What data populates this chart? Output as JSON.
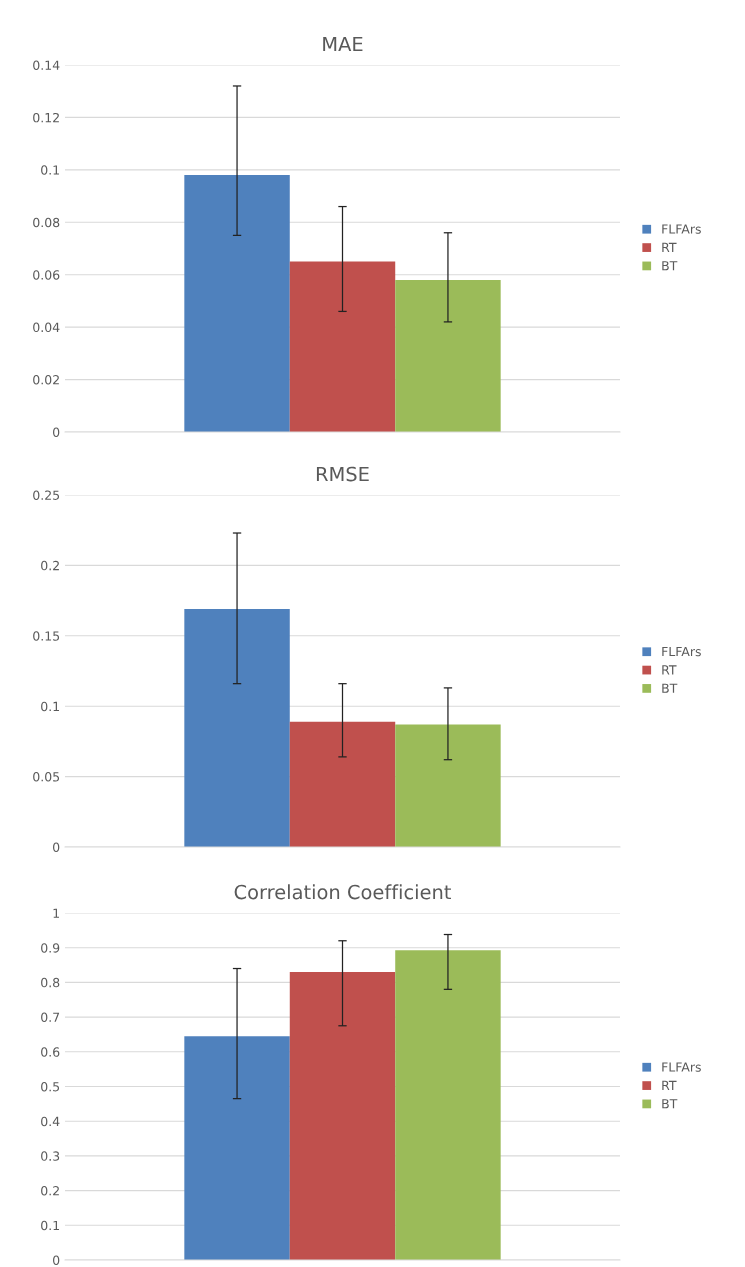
{
  "chart_data": [
    {
      "type": "bar",
      "title": "MAE",
      "categories": [
        null
      ],
      "ylim": [
        0,
        0.14
      ],
      "yticks": [
        {
          "value": 0,
          "label": "0"
        },
        0.02,
        0.04,
        0.06,
        0.08,
        {
          "value": 0.1,
          "label": "0.1"
        },
        0.12,
        0.14
      ],
      "grid": "y",
      "legend": "right",
      "series": [
        {
          "name": "FLFArs",
          "color": "#4f81bd",
          "values": [
            0.098
          ],
          "errors": [
            [
              0.075,
              0.132
            ]
          ]
        },
        {
          "name": "RT",
          "color": "#c0504d",
          "values": [
            0.065
          ],
          "errors": [
            [
              0.046,
              0.086
            ]
          ]
        },
        {
          "name": "BT",
          "color": "#9bbb59",
          "values": [
            0.058
          ],
          "errors": [
            [
              0.042,
              0.076
            ]
          ]
        }
      ]
    },
    {
      "type": "bar",
      "title": "RMSE",
      "categories": [
        null
      ],
      "ylim": [
        0,
        0.25
      ],
      "yticks": [
        {
          "value": 0,
          "label": "0"
        },
        0.05,
        {
          "value": 0.1,
          "label": "0.1"
        },
        0.15,
        {
          "value": 0.2,
          "label": "0.2"
        },
        0.25
      ],
      "grid": "y",
      "legend": "right",
      "series": [
        {
          "name": "FLFArs",
          "color": "#4f81bd",
          "values": [
            0.169
          ],
          "errors": [
            [
              0.116,
              0.223
            ]
          ]
        },
        {
          "name": "RT",
          "color": "#c0504d",
          "values": [
            0.089
          ],
          "errors": [
            [
              0.064,
              0.116
            ]
          ]
        },
        {
          "name": "BT",
          "color": "#9bbb59",
          "values": [
            0.087
          ],
          "errors": [
            [
              0.062,
              0.113
            ]
          ]
        }
      ]
    },
    {
      "type": "bar",
      "title": "Correlation Coefficient",
      "categories": [
        null
      ],
      "ylim": [
        0,
        1
      ],
      "yticks": [
        {
          "value": 0,
          "label": "0"
        },
        0.1,
        0.2,
        0.3,
        0.4,
        0.5,
        0.6,
        0.7,
        0.8,
        0.9,
        {
          "value": 1,
          "label": "1"
        }
      ],
      "grid": "y",
      "legend": "right",
      "series": [
        {
          "name": "FLFArs",
          "color": "#4f81bd",
          "values": [
            0.645
          ],
          "errors": [
            [
              0.465,
              0.84
            ]
          ]
        },
        {
          "name": "RT",
          "color": "#c0504d",
          "values": [
            0.83
          ],
          "errors": [
            [
              0.675,
              0.92
            ]
          ]
        },
        {
          "name": "BT",
          "color": "#9bbb59",
          "values": [
            0.893
          ],
          "errors": [
            [
              0.78,
              0.938
            ]
          ]
        }
      ]
    }
  ]
}
